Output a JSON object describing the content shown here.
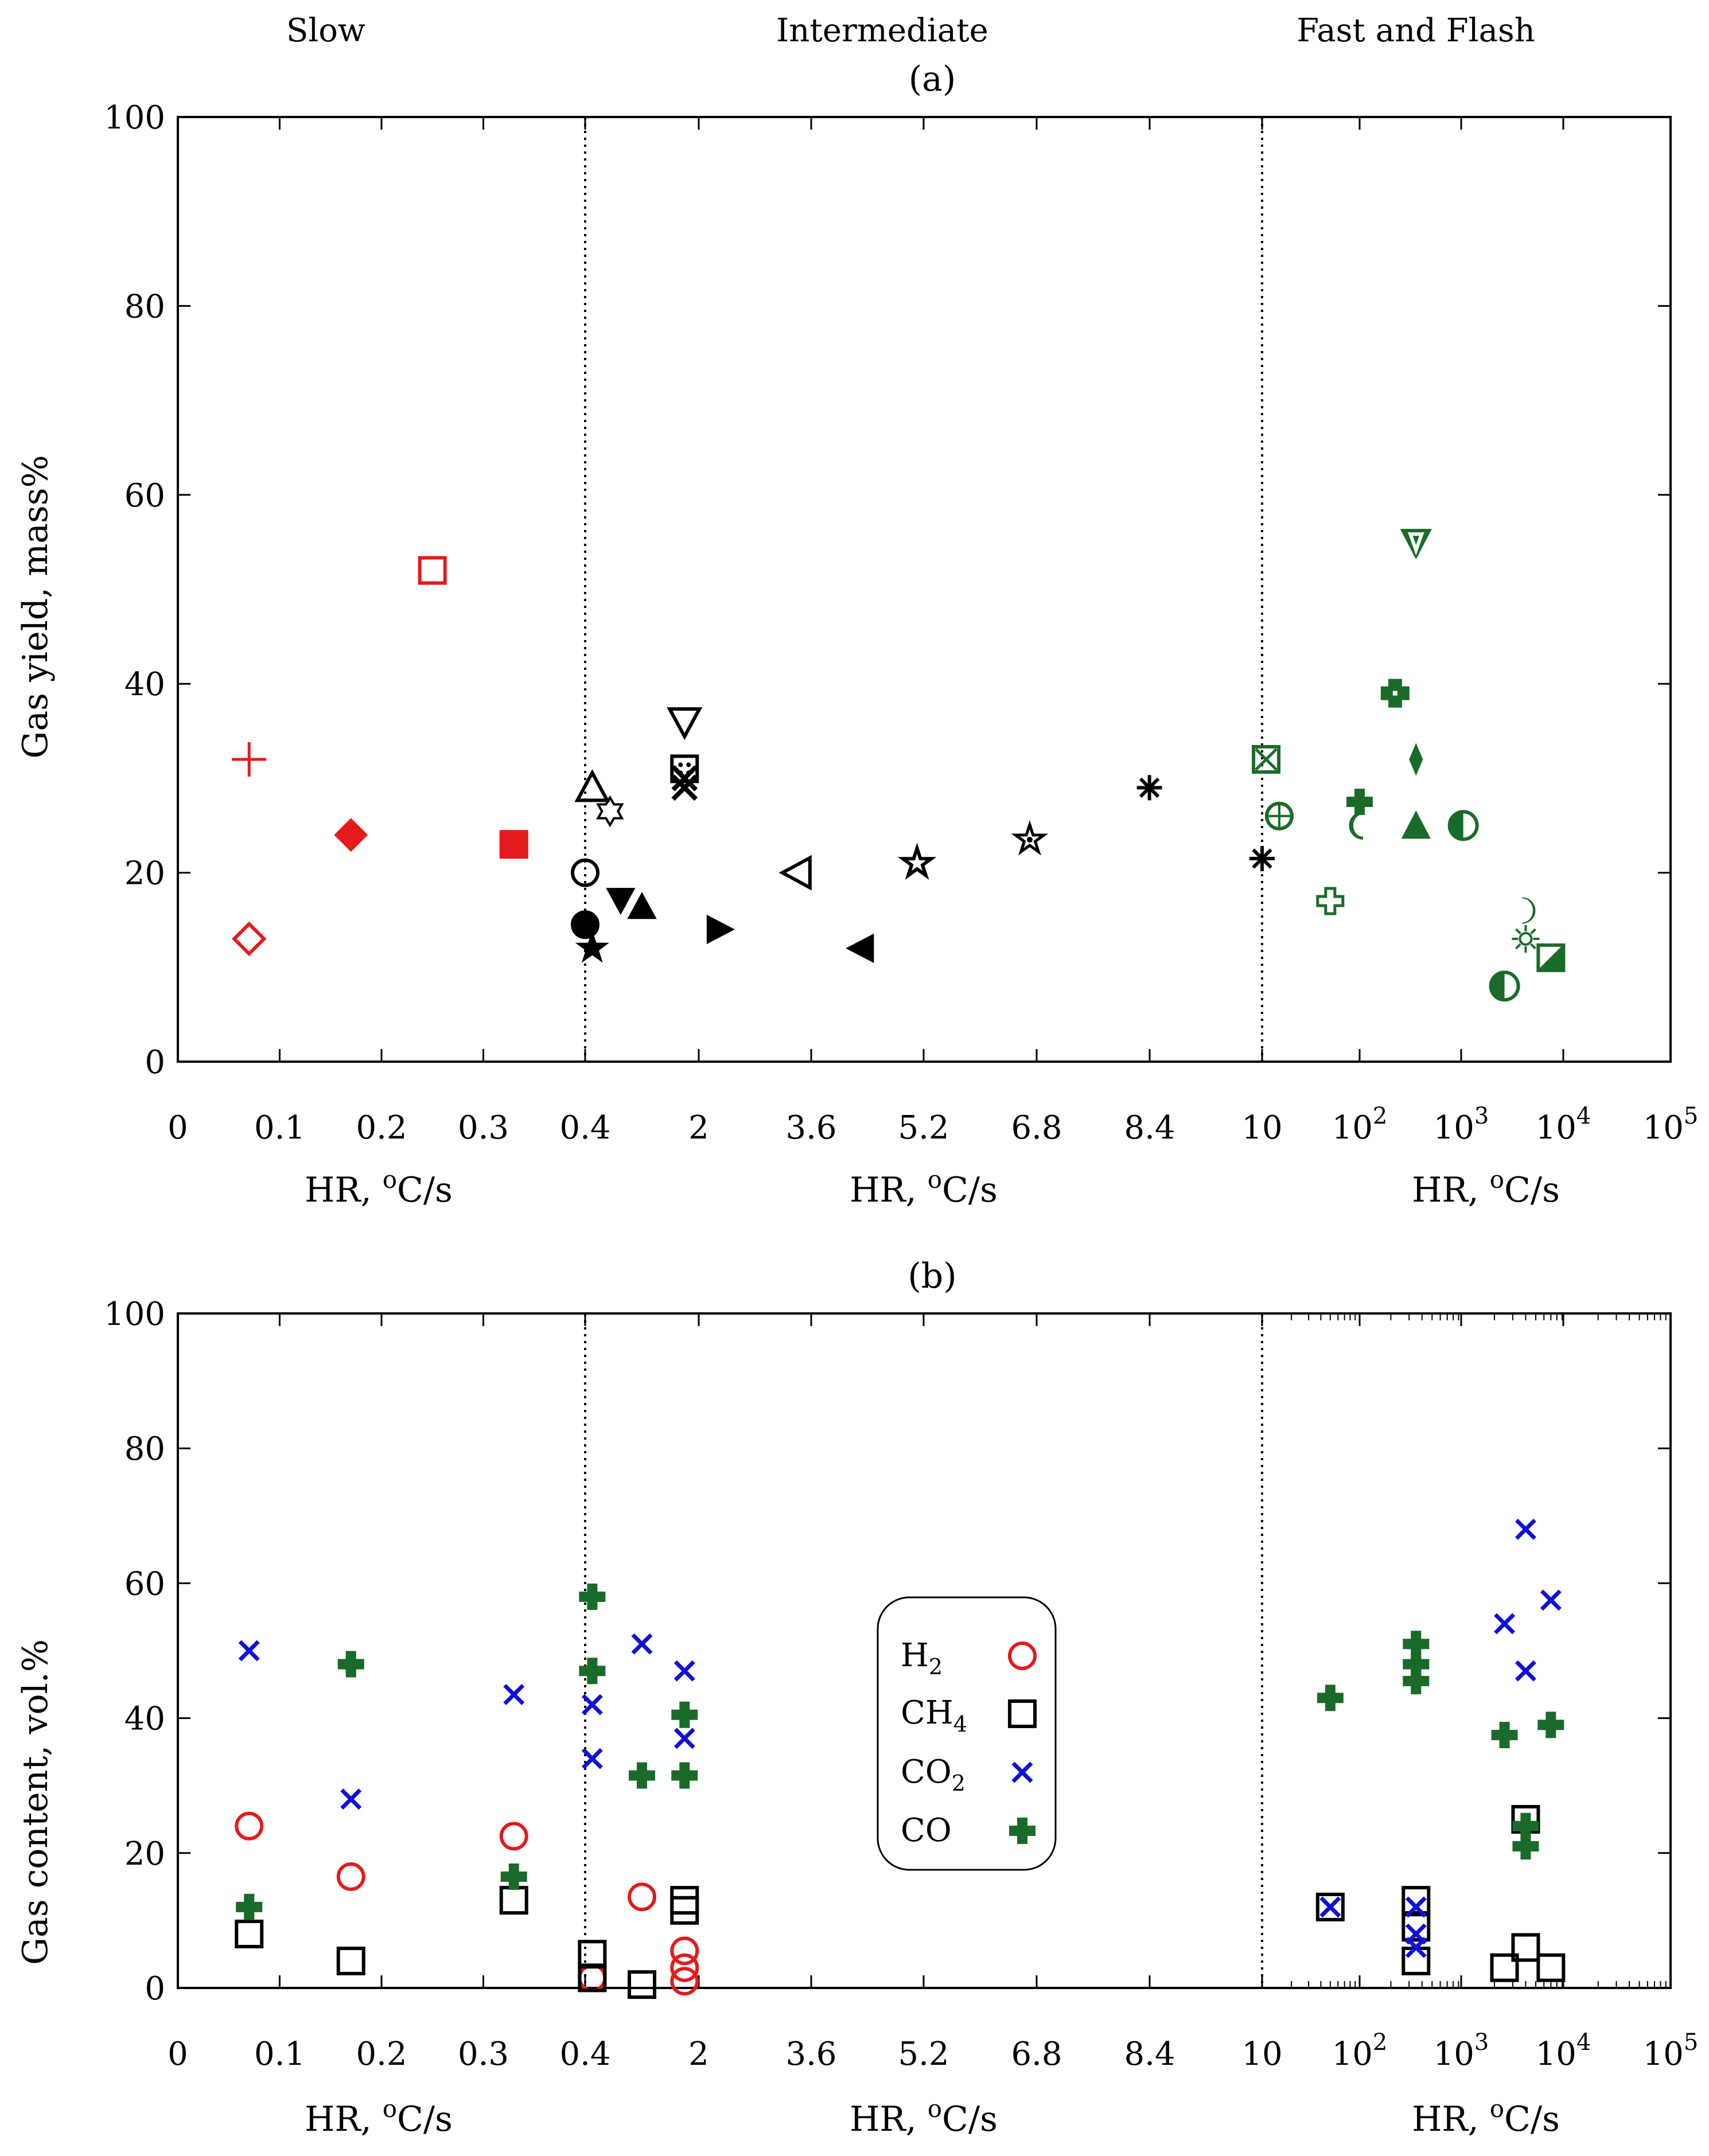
{
  "chart_data": [
    {
      "panel": "(a)",
      "type": "scatter",
      "ylabel": "Gas yield, mass%",
      "ylim": [
        0,
        100
      ],
      "yticks": [
        0,
        20,
        40,
        60,
        80,
        100
      ],
      "regions": [
        {
          "name": "Slow",
          "xticks": [
            "0",
            "0.1",
            "0.2",
            "0.3",
            "0.4"
          ],
          "xlabel": "HR, oC/s"
        },
        {
          "name": "Intermediate",
          "xticks": [
            "2",
            "3.6",
            "5.2",
            "6.8",
            "8.4",
            "10"
          ],
          "xlabel": "HR, oC/s"
        },
        {
          "name": "Fast and Flash",
          "xticks": [
            "10",
            "10^2",
            "10^3",
            "10^4",
            "10^5"
          ],
          "xlabel": "HR, oC/s"
        }
      ],
      "points": [
        {
          "region": "slow",
          "x": 0.07,
          "y": 32,
          "marker": "plus",
          "color": "#e41a1c"
        },
        {
          "region": "slow",
          "x": 0.07,
          "y": 13,
          "marker": "diamond-open",
          "color": "#e41a1c"
        },
        {
          "region": "slow",
          "x": 0.17,
          "y": 24,
          "marker": "diamond-filled",
          "color": "#e41a1c"
        },
        {
          "region": "slow",
          "x": 0.25,
          "y": 52,
          "marker": "square-open",
          "color": "#e41a1c"
        },
        {
          "region": "slow",
          "x": 0.33,
          "y": 23,
          "marker": "square-filled",
          "color": "#e41a1c"
        },
        {
          "region": "intermediate",
          "x": 0.4,
          "y": 20,
          "marker": "circle-open",
          "color": "#000000"
        },
        {
          "region": "intermediate",
          "x": 0.4,
          "y": 14.5,
          "marker": "circle-filled",
          "color": "#000000"
        },
        {
          "region": "intermediate",
          "x": 0.5,
          "y": 12,
          "marker": "star-filled",
          "color": "#000000"
        },
        {
          "region": "intermediate",
          "x": 0.5,
          "y": 29,
          "marker": "triangle-up-open",
          "color": "#000000"
        },
        {
          "region": "intermediate",
          "x": 0.75,
          "y": 26.5,
          "marker": "star6-open",
          "color": "#000000"
        },
        {
          "region": "intermediate",
          "x": 0.9,
          "y": 17,
          "marker": "triangle-down-filled",
          "color": "#000000"
        },
        {
          "region": "intermediate",
          "x": 1.2,
          "y": 16.5,
          "marker": "triangle-up-filled",
          "color": "#000000"
        },
        {
          "region": "intermediate",
          "x": 1.8,
          "y": 36,
          "marker": "triangle-down-open",
          "color": "#000000"
        },
        {
          "region": "intermediate",
          "x": 1.8,
          "y": 31,
          "marker": "square-dotted",
          "color": "#000000"
        },
        {
          "region": "intermediate",
          "x": 1.8,
          "y": 30,
          "marker": "times-bold",
          "color": "#000000"
        },
        {
          "region": "intermediate",
          "x": 1.8,
          "y": 29,
          "marker": "times-bold",
          "color": "#000000"
        },
        {
          "region": "intermediate",
          "x": 2.3,
          "y": 14,
          "marker": "triangle-right-filled",
          "color": "#000000"
        },
        {
          "region": "intermediate",
          "x": 3.4,
          "y": 20,
          "marker": "triangle-left-open",
          "color": "#000000"
        },
        {
          "region": "intermediate",
          "x": 4.3,
          "y": 12,
          "marker": "triangle-left-filled",
          "color": "#000000"
        },
        {
          "region": "intermediate",
          "x": 5.1,
          "y": 21,
          "marker": "star-outline",
          "color": "#000000"
        },
        {
          "region": "intermediate",
          "x": 6.7,
          "y": 23.5,
          "marker": "asterisk-star",
          "color": "#000000"
        },
        {
          "region": "intermediate",
          "x": 8.4,
          "y": 29,
          "marker": "asterisk",
          "color": "#000000"
        },
        {
          "region": "intermediate",
          "x": 10,
          "y": 21.5,
          "marker": "asterisk",
          "color": "#000000"
        },
        {
          "region": "fast",
          "x": 11,
          "y": 32,
          "marker": "square-x",
          "color": "#1a6b2a"
        },
        {
          "region": "fast",
          "x": 15,
          "y": 26,
          "marker": "circle-plus",
          "color": "#1a6b2a"
        },
        {
          "region": "fast",
          "x": 50,
          "y": 17,
          "marker": "cross-open",
          "color": "#1a6b2a"
        },
        {
          "region": "fast",
          "x": 100,
          "y": 27.5,
          "marker": "cross-filled",
          "color": "#1a6b2a"
        },
        {
          "region": "fast",
          "x": 100,
          "y": 25,
          "marker": "crescent-left",
          "color": "#1a6b2a"
        },
        {
          "region": "fast",
          "x": 220,
          "y": 39,
          "marker": "cross-outline-bold",
          "color": "#1a6b2a"
        },
        {
          "region": "fast",
          "x": 350,
          "y": 55,
          "marker": "triangle-down-bold",
          "color": "#1a6b2a"
        },
        {
          "region": "fast",
          "x": 350,
          "y": 32,
          "marker": "diamond-thin",
          "color": "#1a6b2a"
        },
        {
          "region": "fast",
          "x": 350,
          "y": 25,
          "marker": "triangle-up-bold",
          "color": "#1a6b2a"
        },
        {
          "region": "fast",
          "x": 1000,
          "y": 25,
          "marker": "circle-half",
          "color": "#1a6b2a"
        },
        {
          "region": "fast",
          "x": 2500,
          "y": 8,
          "marker": "circle-half",
          "color": "#1a6b2a"
        },
        {
          "region": "fast",
          "x": 4000,
          "y": 16,
          "marker": "crescent-right",
          "color": "#1a6b2a"
        },
        {
          "region": "fast",
          "x": 4000,
          "y": 13,
          "marker": "sun",
          "color": "#1a6b2a"
        },
        {
          "region": "fast",
          "x": 7000,
          "y": 11,
          "marker": "square-half",
          "color": "#1a6b2a"
        }
      ]
    },
    {
      "panel": "(b)",
      "type": "scatter",
      "ylabel": "Gas content, vol.%",
      "ylim": [
        0,
        100
      ],
      "yticks": [
        0,
        20,
        40,
        60,
        80,
        100
      ],
      "regions": [
        {
          "name": "Slow",
          "xticks": [
            "0",
            "0.1",
            "0.2",
            "0.3",
            "0.4"
          ],
          "xlabel": "HR, oC/s"
        },
        {
          "name": "Intermediate",
          "xticks": [
            "2",
            "3.6",
            "5.2",
            "6.8",
            "8.4",
            "10"
          ],
          "xlabel": "HR, oC/s"
        },
        {
          "name": "Fast and Flash",
          "xticks": [
            "10",
            "10^2",
            "10^3",
            "10^4",
            "10^5"
          ],
          "xlabel": "HR, oC/s"
        }
      ],
      "legend": {
        "placement": "center",
        "entries": [
          {
            "series": "H2",
            "label": "H",
            "sub": "2",
            "marker": "circle-open",
            "color": "#e41a1c"
          },
          {
            "series": "CH4",
            "label": "CH",
            "sub": "4",
            "marker": "square-open",
            "color": "#000000"
          },
          {
            "series": "CO2",
            "label": "CO",
            "sub": "2",
            "marker": "times",
            "color": "#1010d8"
          },
          {
            "series": "CO",
            "label": "CO",
            "sub": "",
            "marker": "cross-filled",
            "color": "#1a6b2a"
          }
        ]
      },
      "series": [
        {
          "name": "H2",
          "marker": "circle-open",
          "color": "#e41a1c",
          "points": [
            {
              "region": "slow",
              "x": 0.07,
              "y": 24
            },
            {
              "region": "slow",
              "x": 0.17,
              "y": 16.5
            },
            {
              "region": "slow",
              "x": 0.33,
              "y": 22.5
            },
            {
              "region": "intermediate",
              "x": 0.5,
              "y": 1.5
            },
            {
              "region": "intermediate",
              "x": 1.2,
              "y": 13.5
            },
            {
              "region": "intermediate",
              "x": 1.8,
              "y": 5.5
            },
            {
              "region": "intermediate",
              "x": 1.8,
              "y": 3
            },
            {
              "region": "intermediate",
              "x": 1.8,
              "y": 1
            }
          ]
        },
        {
          "name": "CH4",
          "marker": "square-open",
          "color": "#000000",
          "points": [
            {
              "region": "slow",
              "x": 0.07,
              "y": 8
            },
            {
              "region": "slow",
              "x": 0.17,
              "y": 4
            },
            {
              "region": "slow",
              "x": 0.33,
              "y": 13
            },
            {
              "region": "intermediate",
              "x": 0.5,
              "y": 5
            },
            {
              "region": "intermediate",
              "x": 0.5,
              "y": 1.5
            },
            {
              "region": "intermediate",
              "x": 1.2,
              "y": 0.5
            },
            {
              "region": "intermediate",
              "x": 1.8,
              "y": 13
            },
            {
              "region": "intermediate",
              "x": 1.8,
              "y": 11.5
            },
            {
              "region": "fast",
              "x": 50,
              "y": 12
            },
            {
              "region": "fast",
              "x": 350,
              "y": 13
            },
            {
              "region": "fast",
              "x": 350,
              "y": 9
            },
            {
              "region": "fast",
              "x": 350,
              "y": 4
            },
            {
              "region": "fast",
              "x": 2500,
              "y": 3
            },
            {
              "region": "fast",
              "x": 4000,
              "y": 6
            },
            {
              "region": "fast",
              "x": 4000,
              "y": 25
            },
            {
              "region": "fast",
              "x": 7000,
              "y": 3
            }
          ]
        },
        {
          "name": "CO2",
          "marker": "times",
          "color": "#1010d8",
          "points": [
            {
              "region": "slow",
              "x": 0.07,
              "y": 50
            },
            {
              "region": "slow",
              "x": 0.17,
              "y": 28
            },
            {
              "region": "slow",
              "x": 0.33,
              "y": 43.5
            },
            {
              "region": "intermediate",
              "x": 0.5,
              "y": 42
            },
            {
              "region": "intermediate",
              "x": 0.5,
              "y": 34
            },
            {
              "region": "intermediate",
              "x": 1.2,
              "y": 51
            },
            {
              "region": "intermediate",
              "x": 1.8,
              "y": 47
            },
            {
              "region": "intermediate",
              "x": 1.8,
              "y": 37
            },
            {
              "region": "fast",
              "x": 50,
              "y": 12
            },
            {
              "region": "fast",
              "x": 350,
              "y": 12
            },
            {
              "region": "fast",
              "x": 350,
              "y": 8
            },
            {
              "region": "fast",
              "x": 350,
              "y": 6
            },
            {
              "region": "fast",
              "x": 2500,
              "y": 54
            },
            {
              "region": "fast",
              "x": 4000,
              "y": 68
            },
            {
              "region": "fast",
              "x": 4000,
              "y": 47
            },
            {
              "region": "fast",
              "x": 7000,
              "y": 57.5
            }
          ]
        },
        {
          "name": "CO",
          "marker": "cross-filled",
          "color": "#1a6b2a",
          "points": [
            {
              "region": "slow",
              "x": 0.07,
              "y": 12
            },
            {
              "region": "slow",
              "x": 0.17,
              "y": 48
            },
            {
              "region": "slow",
              "x": 0.33,
              "y": 16.5
            },
            {
              "region": "intermediate",
              "x": 0.5,
              "y": 58
            },
            {
              "region": "intermediate",
              "x": 0.5,
              "y": 47
            },
            {
              "region": "intermediate",
              "x": 1.2,
              "y": 31.5
            },
            {
              "region": "intermediate",
              "x": 1.8,
              "y": 40.5
            },
            {
              "region": "intermediate",
              "x": 1.8,
              "y": 31.5
            },
            {
              "region": "fast",
              "x": 50,
              "y": 43
            },
            {
              "region": "fast",
              "x": 350,
              "y": 51
            },
            {
              "region": "fast",
              "x": 350,
              "y": 48
            },
            {
              "region": "fast",
              "x": 350,
              "y": 45.5
            },
            {
              "region": "fast",
              "x": 2500,
              "y": 37.5
            },
            {
              "region": "fast",
              "x": 4000,
              "y": 24
            },
            {
              "region": "fast",
              "x": 4000,
              "y": 21
            },
            {
              "region": "fast",
              "x": 7000,
              "y": 39
            }
          ]
        }
      ]
    }
  ]
}
